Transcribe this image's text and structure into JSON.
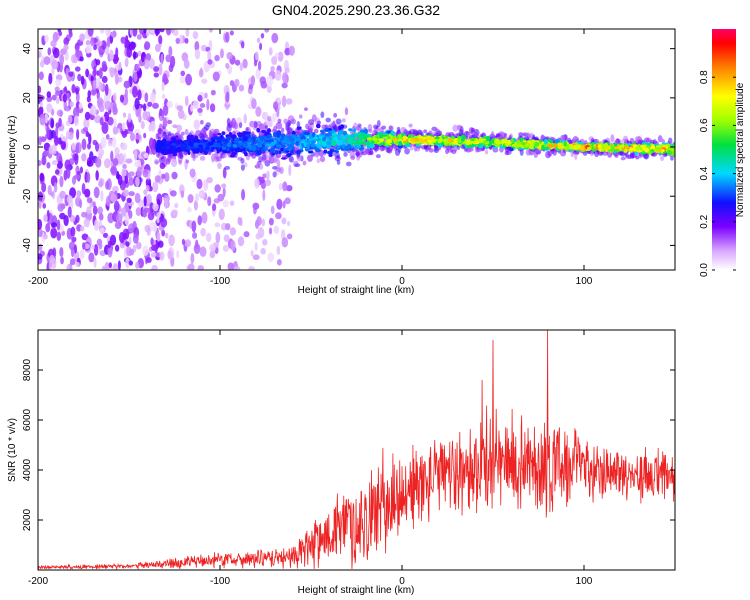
{
  "title": "GN04.2025.290.23.36.G32",
  "chart_data": [
    {
      "type": "heatmap",
      "name": "spectrogram",
      "xlabel": "Height of straight line (km)",
      "ylabel": "Frequency (Hz)",
      "xlim": [
        -200,
        150
      ],
      "ylim": [
        -50,
        48
      ],
      "xticks": [
        -200,
        -100,
        0,
        100
      ],
      "xtick_labels": [
        "-200",
        "-100",
        "0",
        "100"
      ],
      "yticks": [
        -40,
        -20,
        0,
        20,
        40
      ],
      "ytick_labels": [
        "-40",
        "-20",
        "0",
        "20",
        "40"
      ],
      "colorbar": {
        "label": "Normalized spectral amplitude",
        "range": [
          0,
          1
        ],
        "ticks": [
          0,
          0.2,
          0.4,
          0.6,
          0.8
        ],
        "tick_labels": [
          "0.0",
          "0.2",
          "0.4",
          "0.6",
          "0.8"
        ]
      },
      "ridge": {
        "x": [
          -135,
          -100,
          -60,
          -30,
          0,
          50,
          100,
          150
        ],
        "center_freq": [
          0,
          1,
          2,
          3,
          3,
          2,
          0,
          -1
        ],
        "halfwidth": [
          5,
          6,
          8,
          7,
          3,
          3,
          2,
          3
        ],
        "peak_amplitude": [
          0.3,
          0.35,
          0.4,
          0.5,
          0.85,
          0.75,
          0.9,
          0.85
        ]
      },
      "noise_region": {
        "x_range": [
          -200,
          -60
        ],
        "density": "high below -130, sparse -130 to -60"
      }
    },
    {
      "type": "line",
      "name": "snr",
      "xlabel": "Height of straight line (km)",
      "ylabel": "SNR (10 * v/v)",
      "xlim": [
        -200,
        150
      ],
      "ylim": [
        0,
        9600
      ],
      "xticks": [
        -200,
        -100,
        0,
        100
      ],
      "xtick_labels": [
        "-200",
        "-100",
        "0",
        "100"
      ],
      "yticks": [
        2000,
        4000,
        6000,
        8000
      ],
      "ytick_labels": [
        "2000",
        "4000",
        "6000",
        "8000"
      ],
      "series": [
        {
          "name": "SNR",
          "color": "#ee2222",
          "envelope_x": [
            -200,
            -150,
            -130,
            -100,
            -80,
            -60,
            -50,
            -40,
            -20,
            -10,
            0,
            20,
            40,
            50,
            60,
            70,
            80,
            100,
            120,
            150
          ],
          "envelope_mean": [
            100,
            150,
            250,
            400,
            450,
            500,
            1100,
            1500,
            2000,
            2600,
            3000,
            3800,
            4100,
            4300,
            4200,
            4400,
            4100,
            4200,
            3900,
            3600
          ],
          "envelope_spread": [
            80,
            120,
            200,
            400,
            400,
            500,
            1300,
            1700,
            2200,
            2400,
            2200,
            1800,
            2200,
            2600,
            2400,
            2000,
            2600,
            1600,
            1200,
            1400
          ],
          "peaks": [
            {
              "x": 50,
              "y": 9200
            },
            {
              "x": 80,
              "y": 9600
            },
            {
              "x": 44,
              "y": 7600
            }
          ]
        }
      ]
    }
  ]
}
